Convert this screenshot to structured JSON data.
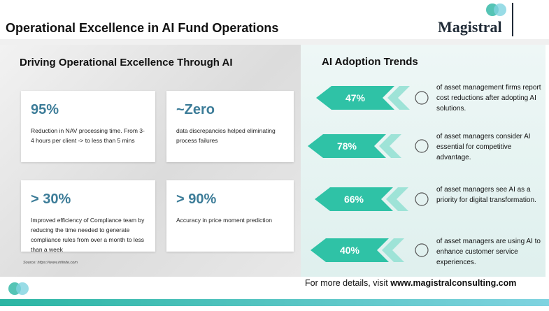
{
  "header": {
    "title": "Operational Excellence in AI Fund Operations",
    "logo": "Magistral"
  },
  "left": {
    "heading": "Driving Operational Excellence Through AI",
    "cards": [
      {
        "value": "95%",
        "text": "Reduction in NAV processing time. From 3-4 hours per client -> to less than 5 mins"
      },
      {
        "value": "~Zero",
        "text": "data discrepancies helped eliminating process failures"
      },
      {
        "value": "> 30%",
        "text": "Improved efficiency of Compliance team by reducing the time needed to generate compliance rules from over a month to less than a week"
      },
      {
        "value": "> 90%",
        "text": "Accuracy in price moment prediction"
      }
    ],
    "source": "Source: https://www.infinite.com"
  },
  "right": {
    "heading": "AI Adoption Trends",
    "trends": [
      {
        "value": "47%",
        "text": "of asset management firms report cost reductions after adopting AI solutions."
      },
      {
        "value": "78%",
        "text": "of asset managers consider AI essential for competitive advantage."
      },
      {
        "value": "66%",
        "text": "of asset managers see AI as a priority for digital transformation."
      },
      {
        "value": "40%",
        "text": "of asset managers are using AI to enhance customer service experiences."
      }
    ]
  },
  "footer": {
    "text": "For more details, visit",
    "url": "www.magistralconsulting.com"
  }
}
